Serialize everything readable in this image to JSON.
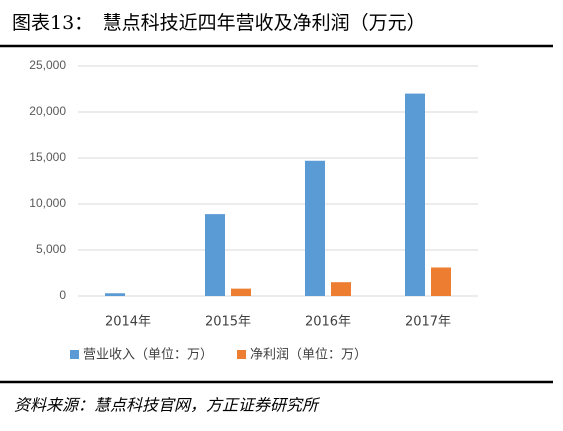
{
  "chart_data": {
    "type": "bar",
    "title": "图表13：　慧点科技近四年营收及净利润（万元）",
    "source": "资料来源：慧点科技官网，方正证券研究所",
    "categories": [
      "2014年",
      "2015年",
      "2016年",
      "2017年"
    ],
    "series": [
      {
        "name": "营业收入（单位：万）",
        "color": "#5b9bd5",
        "values": [
          300,
          8900,
          14700,
          22000
        ]
      },
      {
        "name": "净利润（单位：万）",
        "color": "#ed7d31",
        "values": [
          0,
          800,
          1500,
          3100
        ]
      }
    ],
    "ylim": [
      0,
      25000
    ],
    "yticks": [
      0,
      {
        "value": 5000,
        "label": "5,000"
      },
      {
        "value": 10000,
        "label": "10,000"
      },
      {
        "value": 15000,
        "label": "15,000"
      },
      {
        "value": 20000,
        "label": "20,000"
      },
      {
        "value": 25000,
        "label": "25,000"
      }
    ],
    "grid": true,
    "legend": "bottom"
  }
}
